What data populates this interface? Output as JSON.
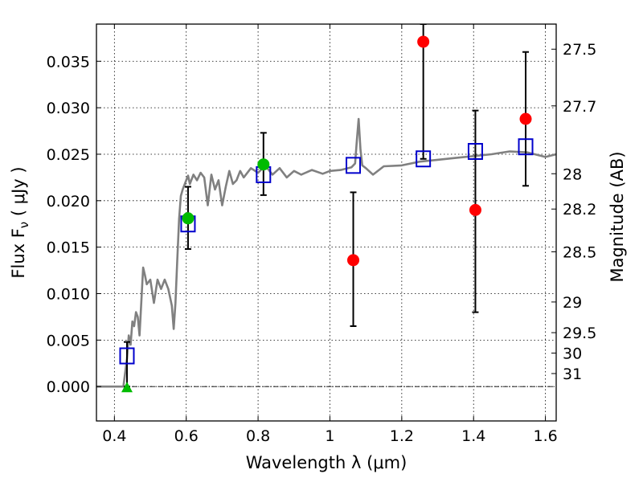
{
  "chart_data": {
    "type": "scatter",
    "xlabel": "Wavelength  λ (μm)",
    "ylabel": "Flux  F",
    "ylabel_sub": "ν",
    "ylabel_unit": "  ( μJy )",
    "y2label": "Magnitude (AB)",
    "xlim": [
      0.35,
      1.63
    ],
    "ylim": [
      -0.0037,
      0.039
    ],
    "grid": true,
    "x_ticks": [
      0.4,
      0.6,
      0.8,
      1.0,
      1.2,
      1.4,
      1.6
    ],
    "x_tick_labels": [
      "0.4",
      "0.6",
      "0.8",
      "1",
      "1.2",
      "1.4",
      "1.6"
    ],
    "y_ticks": [
      0.0,
      0.005,
      0.01,
      0.015,
      0.02,
      0.025,
      0.03,
      0.035
    ],
    "y_tick_labels": [
      "0.000",
      "0.005",
      "0.010",
      "0.015",
      "0.020",
      "0.025",
      "0.030",
      "0.035"
    ],
    "y2_ticks": [
      {
        "label": "27.5",
        "flux": 0.0363
      },
      {
        "label": "27.7",
        "flux": 0.0302
      },
      {
        "label": "28",
        "flux": 0.0229
      },
      {
        "label": "28.2",
        "flux": 0.0191
      },
      {
        "label": "28.5",
        "flux": 0.0145
      },
      {
        "label": "29",
        "flux": 0.0091
      },
      {
        "label": "29.5",
        "flux": 0.0058
      },
      {
        "label": "30",
        "flux": 0.0036
      },
      {
        "label": "31",
        "flux": 0.0014
      }
    ],
    "series": [
      {
        "kind": "line",
        "color": "#808080",
        "points": [
          [
            0.35,
            0.0
          ],
          [
            0.41,
            0.0
          ],
          [
            0.425,
            0.0
          ],
          [
            0.435,
            0.003
          ],
          [
            0.44,
            0.0055
          ],
          [
            0.445,
            0.0045
          ],
          [
            0.45,
            0.007
          ],
          [
            0.455,
            0.0065
          ],
          [
            0.46,
            0.008
          ],
          [
            0.465,
            0.0075
          ],
          [
            0.47,
            0.0055
          ],
          [
            0.48,
            0.0128
          ],
          [
            0.485,
            0.012
          ],
          [
            0.49,
            0.011
          ],
          [
            0.5,
            0.0115
          ],
          [
            0.51,
            0.009
          ],
          [
            0.52,
            0.0115
          ],
          [
            0.53,
            0.0105
          ],
          [
            0.54,
            0.0115
          ],
          [
            0.55,
            0.0105
          ],
          [
            0.56,
            0.0087
          ],
          [
            0.565,
            0.0062
          ],
          [
            0.57,
            0.009
          ],
          [
            0.575,
            0.0135
          ],
          [
            0.58,
            0.018
          ],
          [
            0.585,
            0.0205
          ],
          [
            0.59,
            0.0212
          ],
          [
            0.6,
            0.0222
          ],
          [
            0.605,
            0.0227
          ],
          [
            0.61,
            0.0218
          ],
          [
            0.62,
            0.0228
          ],
          [
            0.63,
            0.0222
          ],
          [
            0.64,
            0.023
          ],
          [
            0.65,
            0.0225
          ],
          [
            0.66,
            0.0195
          ],
          [
            0.67,
            0.0228
          ],
          [
            0.68,
            0.0212
          ],
          [
            0.69,
            0.0222
          ],
          [
            0.7,
            0.0195
          ],
          [
            0.71,
            0.0215
          ],
          [
            0.72,
            0.0232
          ],
          [
            0.73,
            0.0218
          ],
          [
            0.74,
            0.0222
          ],
          [
            0.75,
            0.0232
          ],
          [
            0.76,
            0.0225
          ],
          [
            0.78,
            0.0235
          ],
          [
            0.8,
            0.023
          ],
          [
            0.82,
            0.0238
          ],
          [
            0.84,
            0.0228
          ],
          [
            0.86,
            0.0235
          ],
          [
            0.88,
            0.0225
          ],
          [
            0.9,
            0.0232
          ],
          [
            0.92,
            0.0228
          ],
          [
            0.95,
            0.0233
          ],
          [
            0.98,
            0.0229
          ],
          [
            1.0,
            0.0232
          ],
          [
            1.03,
            0.0233
          ],
          [
            1.06,
            0.0236
          ],
          [
            1.07,
            0.024
          ],
          [
            1.075,
            0.0265
          ],
          [
            1.08,
            0.0288
          ],
          [
            1.085,
            0.0255
          ],
          [
            1.09,
            0.0238
          ],
          [
            1.1,
            0.0235
          ],
          [
            1.12,
            0.0228
          ],
          [
            1.15,
            0.0237
          ],
          [
            1.2,
            0.0238
          ],
          [
            1.25,
            0.0242
          ],
          [
            1.3,
            0.0244
          ],
          [
            1.35,
            0.0246
          ],
          [
            1.4,
            0.0248
          ],
          [
            1.45,
            0.025
          ],
          [
            1.5,
            0.0253
          ],
          [
            1.55,
            0.0252
          ],
          [
            1.6,
            0.0247
          ],
          [
            1.63,
            0.025
          ]
        ]
      },
      {
        "kind": "open-square",
        "color": "#0000cc",
        "points": [
          [
            0.435,
            0.0033
          ],
          [
            0.605,
            0.0175
          ],
          [
            0.815,
            0.0228
          ],
          [
            1.065,
            0.0238
          ],
          [
            1.26,
            0.0245
          ],
          [
            1.405,
            0.0253
          ],
          [
            1.545,
            0.0258
          ]
        ]
      },
      {
        "kind": "filled-circle",
        "color": "#00bb00",
        "points": [
          [
            0.605,
            0.0181
          ],
          [
            0.815,
            0.0239
          ]
        ]
      },
      {
        "kind": "filled-circle",
        "color": "#ff0000",
        "points": [
          [
            1.065,
            0.0136
          ],
          [
            1.26,
            0.0371
          ],
          [
            1.405,
            0.019
          ],
          [
            1.545,
            0.0288
          ]
        ]
      },
      {
        "kind": "filled-triangle",
        "color": "#00bb00",
        "points": [
          [
            0.435,
            0.0
          ]
        ]
      }
    ],
    "error_bars": [
      {
        "x": 0.435,
        "low": 0.0,
        "high": 0.0048
      },
      {
        "x": 0.605,
        "low": 0.0148,
        "high": 0.0215
      },
      {
        "x": 0.815,
        "low": 0.0206,
        "high": 0.0273
      },
      {
        "x": 1.065,
        "low": 0.0065,
        "high": 0.0209
      },
      {
        "x": 1.26,
        "low": 0.0245,
        "high": 0.039
      },
      {
        "x": 1.405,
        "low": 0.008,
        "high": 0.0297
      },
      {
        "x": 1.545,
        "low": 0.0216,
        "high": 0.036
      }
    ],
    "zero_line": true
  }
}
